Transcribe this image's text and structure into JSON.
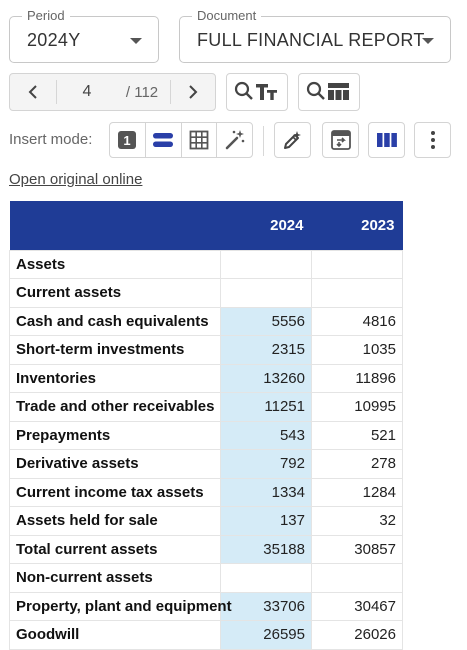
{
  "filters": {
    "period": {
      "legend": "Period",
      "value": "2024Y"
    },
    "document": {
      "legend": "Document",
      "value": "FULL FINANCIAL REPORT"
    }
  },
  "pager": {
    "current": "4",
    "total": "/ 112"
  },
  "toolbar": {
    "insert_mode_label": "Insert mode:",
    "mode_one": "1"
  },
  "link": {
    "open_original": "Open original online"
  },
  "table": {
    "columns": [
      "",
      "2024",
      "2023"
    ],
    "rows": [
      {
        "label": "Assets",
        "v2024": "",
        "v2023": "",
        "highlight": false
      },
      {
        "label": "Current assets",
        "v2024": "",
        "v2023": "",
        "highlight": false
      },
      {
        "label": "Cash and cash equivalents",
        "v2024": "5556",
        "v2023": "4816",
        "highlight": true
      },
      {
        "label": "Short-term investments",
        "v2024": "2315",
        "v2023": "1035",
        "highlight": true
      },
      {
        "label": "Inventories",
        "v2024": "13260",
        "v2023": "11896",
        "highlight": true
      },
      {
        "label": "Trade and other receivables",
        "v2024": "11251",
        "v2023": "10995",
        "highlight": true
      },
      {
        "label": "Prepayments",
        "v2024": "543",
        "v2023": "521",
        "highlight": true
      },
      {
        "label": "Derivative assets",
        "v2024": "792",
        "v2023": "278",
        "highlight": true
      },
      {
        "label": "Current income tax assets",
        "v2024": "1334",
        "v2023": "1284",
        "highlight": true
      },
      {
        "label": "Assets held for sale",
        "v2024": "137",
        "v2023": "32",
        "highlight": true
      },
      {
        "label": "Total current assets",
        "v2024": "35188",
        "v2023": "30857",
        "highlight": true
      },
      {
        "label": "Non-current assets",
        "v2024": "",
        "v2023": "",
        "highlight": false
      },
      {
        "label": "Property, plant and equipment",
        "v2024": "33706",
        "v2023": "30467",
        "highlight": true
      },
      {
        "label": "Goodwill",
        "v2024": "26595",
        "v2023": "26026",
        "highlight": true
      }
    ]
  },
  "colors": {
    "header_bg": "#1f3c96",
    "highlight": "#d5ebf7",
    "accent_icon": "#2a3fa8"
  }
}
